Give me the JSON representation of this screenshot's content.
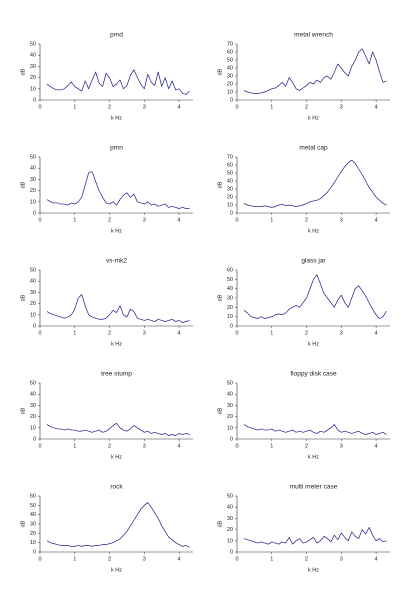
{
  "chart_data": [
    {
      "type": "line",
      "title": "pmd",
      "xlabel": "k Hz",
      "ylabel": "dB",
      "color": "#1c1c8a",
      "x": [
        0.2,
        0.3,
        0.4,
        0.5,
        0.6,
        0.7,
        0.8,
        0.9,
        1.0,
        1.1,
        1.2,
        1.3,
        1.4,
        1.5,
        1.6,
        1.7,
        1.8,
        1.9,
        2.0,
        2.1,
        2.2,
        2.3,
        2.4,
        2.5,
        2.6,
        2.7,
        2.8,
        2.9,
        3.0,
        3.1,
        3.2,
        3.3,
        3.4,
        3.5,
        3.6,
        3.7,
        3.8,
        3.9,
        4.0,
        4.1,
        4.2,
        4.3
      ],
      "values": [
        14,
        12,
        10,
        9,
        9,
        10,
        13,
        16,
        12,
        10,
        8,
        17,
        10,
        18,
        25,
        15,
        12,
        24,
        20,
        12,
        14,
        18,
        10,
        13,
        22,
        27,
        20,
        14,
        10,
        23,
        16,
        13,
        25,
        12,
        20,
        10,
        17,
        9,
        10,
        6,
        5,
        8
      ],
      "xlim": [
        0,
        4.4
      ],
      "xticks": [
        0,
        1,
        2,
        3,
        4
      ],
      "ylim": [
        0,
        50
      ],
      "yticks": [
        0,
        10,
        20,
        30,
        40,
        50
      ]
    },
    {
      "type": "line",
      "title": "metal wrench",
      "xlabel": "k Hz",
      "ylabel": "dB",
      "color": "#1c1c8a",
      "x": [
        0.2,
        0.3,
        0.4,
        0.5,
        0.6,
        0.7,
        0.8,
        0.9,
        1.0,
        1.1,
        1.2,
        1.3,
        1.4,
        1.5,
        1.6,
        1.7,
        1.8,
        1.9,
        2.0,
        2.1,
        2.2,
        2.3,
        2.4,
        2.5,
        2.6,
        2.7,
        2.8,
        2.9,
        3.0,
        3.1,
        3.2,
        3.3,
        3.4,
        3.5,
        3.6,
        3.7,
        3.8,
        3.9,
        4.0,
        4.1,
        4.2,
        4.3
      ],
      "values": [
        12,
        10,
        9,
        8,
        8,
        9,
        10,
        12,
        14,
        15,
        18,
        22,
        17,
        28,
        22,
        14,
        12,
        15,
        18,
        22,
        20,
        25,
        22,
        28,
        30,
        26,
        35,
        45,
        40,
        34,
        30,
        42,
        50,
        60,
        64,
        55,
        45,
        60,
        50,
        35,
        22,
        24
      ],
      "xlim": [
        0,
        4.4
      ],
      "xticks": [
        0,
        1,
        2,
        3,
        4
      ],
      "ylim": [
        0,
        70
      ],
      "yticks": [
        0,
        10,
        20,
        30,
        40,
        50,
        60,
        70
      ]
    },
    {
      "type": "line",
      "title": "pmn",
      "xlabel": "k Hz",
      "ylabel": "dB",
      "color": "#1c1c8a",
      "x": [
        0.2,
        0.3,
        0.4,
        0.5,
        0.6,
        0.7,
        0.8,
        0.9,
        1.0,
        1.1,
        1.2,
        1.3,
        1.4,
        1.5,
        1.6,
        1.7,
        1.8,
        1.9,
        2.0,
        2.1,
        2.2,
        2.3,
        2.4,
        2.5,
        2.6,
        2.7,
        2.8,
        2.9,
        3.0,
        3.1,
        3.2,
        3.3,
        3.4,
        3.5,
        3.6,
        3.7,
        3.8,
        3.9,
        4.0,
        4.1,
        4.2,
        4.3
      ],
      "values": [
        12,
        10,
        9,
        9,
        8,
        8,
        7,
        9,
        8,
        10,
        14,
        25,
        36,
        37,
        28,
        20,
        14,
        9,
        8,
        10,
        7,
        12,
        16,
        18,
        14,
        17,
        10,
        9,
        8,
        10,
        7,
        8,
        6,
        7,
        8,
        5,
        6,
        5,
        4,
        5,
        4,
        4
      ],
      "xlim": [
        0,
        4.4
      ],
      "xticks": [
        0,
        1,
        2,
        3,
        4
      ],
      "ylim": [
        0,
        50
      ],
      "yticks": [
        0,
        10,
        20,
        30,
        40,
        50
      ]
    },
    {
      "type": "line",
      "title": "metal cap",
      "xlabel": "k Hz",
      "ylabel": "dB",
      "color": "#1c1c8a",
      "x": [
        0.2,
        0.3,
        0.4,
        0.5,
        0.6,
        0.7,
        0.8,
        0.9,
        1.0,
        1.1,
        1.2,
        1.3,
        1.4,
        1.5,
        1.6,
        1.7,
        1.8,
        1.9,
        2.0,
        2.1,
        2.2,
        2.3,
        2.4,
        2.5,
        2.6,
        2.7,
        2.8,
        2.9,
        3.0,
        3.1,
        3.2,
        3.3,
        3.4,
        3.5,
        3.6,
        3.7,
        3.8,
        3.9,
        4.0,
        4.1,
        4.2,
        4.3
      ],
      "values": [
        12,
        10,
        9,
        8,
        8,
        8,
        9,
        8,
        7,
        8,
        10,
        11,
        9,
        10,
        9,
        8,
        9,
        10,
        12,
        14,
        15,
        16,
        18,
        22,
        26,
        32,
        38,
        45,
        52,
        58,
        63,
        66,
        62,
        55,
        48,
        40,
        32,
        26,
        20,
        16,
        12,
        10
      ],
      "xlim": [
        0,
        4.4
      ],
      "xticks": [
        0,
        1,
        2,
        3,
        4
      ],
      "ylim": [
        0,
        70
      ],
      "yticks": [
        0,
        10,
        20,
        30,
        40,
        50,
        60,
        70
      ]
    },
    {
      "type": "line",
      "title": "vs-mk2",
      "xlabel": "k Hz",
      "ylabel": "dB",
      "color": "#1c1c8a",
      "x": [
        0.2,
        0.3,
        0.4,
        0.5,
        0.6,
        0.7,
        0.8,
        0.9,
        1.0,
        1.1,
        1.2,
        1.3,
        1.4,
        1.5,
        1.6,
        1.7,
        1.8,
        1.9,
        2.0,
        2.1,
        2.2,
        2.3,
        2.4,
        2.5,
        2.6,
        2.7,
        2.8,
        2.9,
        3.0,
        3.1,
        3.2,
        3.3,
        3.4,
        3.5,
        3.6,
        3.7,
        3.8,
        3.9,
        4.0,
        4.1,
        4.2,
        4.3
      ],
      "values": [
        13,
        11,
        10,
        9,
        8,
        7,
        8,
        10,
        15,
        25,
        28,
        18,
        10,
        8,
        7,
        6,
        6,
        7,
        10,
        14,
        12,
        18,
        10,
        8,
        15,
        13,
        7,
        6,
        5,
        6,
        5,
        4,
        6,
        5,
        4,
        5,
        6,
        4,
        5,
        3,
        4,
        5
      ],
      "xlim": [
        0,
        4.4
      ],
      "xticks": [
        0,
        1,
        2,
        3,
        4
      ],
      "ylim": [
        0,
        50
      ],
      "yticks": [
        0,
        10,
        20,
        30,
        40,
        50
      ]
    },
    {
      "type": "line",
      "title": "glass jar",
      "xlabel": "k Hz",
      "ylabel": "dB",
      "color": "#1c1c8a",
      "x": [
        0.2,
        0.3,
        0.4,
        0.5,
        0.6,
        0.7,
        0.8,
        0.9,
        1.0,
        1.1,
        1.2,
        1.3,
        1.4,
        1.5,
        1.6,
        1.7,
        1.8,
        1.9,
        2.0,
        2.1,
        2.2,
        2.3,
        2.4,
        2.5,
        2.6,
        2.7,
        2.8,
        2.9,
        3.0,
        3.1,
        3.2,
        3.3,
        3.4,
        3.5,
        3.6,
        3.7,
        3.8,
        3.9,
        4.0,
        4.1,
        4.2,
        4.3
      ],
      "values": [
        17,
        14,
        10,
        9,
        8,
        10,
        8,
        9,
        10,
        12,
        13,
        12,
        14,
        18,
        20,
        22,
        20,
        25,
        30,
        40,
        50,
        55,
        45,
        35,
        30,
        25,
        20,
        28,
        33,
        25,
        20,
        30,
        40,
        43,
        38,
        32,
        25,
        18,
        12,
        8,
        10,
        16
      ],
      "xlim": [
        0,
        4.4
      ],
      "xticks": [
        0,
        1,
        2,
        3,
        4
      ],
      "ylim": [
        0,
        60
      ],
      "yticks": [
        0,
        10,
        20,
        30,
        40,
        50,
        60
      ]
    },
    {
      "type": "line",
      "title": "tree stump",
      "xlabel": "k Hz",
      "ylabel": "dB",
      "color": "#1c1c8a",
      "x": [
        0.2,
        0.3,
        0.4,
        0.5,
        0.6,
        0.7,
        0.8,
        0.9,
        1.0,
        1.1,
        1.2,
        1.3,
        1.4,
        1.5,
        1.6,
        1.7,
        1.8,
        1.9,
        2.0,
        2.1,
        2.2,
        2.3,
        2.4,
        2.5,
        2.6,
        2.7,
        2.8,
        2.9,
        3.0,
        3.1,
        3.2,
        3.3,
        3.4,
        3.5,
        3.6,
        3.7,
        3.8,
        3.9,
        4.0,
        4.1,
        4.2,
        4.3
      ],
      "values": [
        13,
        11,
        10,
        9,
        9,
        8,
        9,
        8,
        8,
        7,
        7,
        8,
        7,
        6,
        7,
        8,
        6,
        7,
        9,
        12,
        14,
        10,
        8,
        7,
        9,
        12,
        10,
        8,
        6,
        7,
        5,
        6,
        5,
        4,
        5,
        3,
        4,
        3,
        5,
        4,
        5,
        4
      ],
      "xlim": [
        0,
        4.4
      ],
      "xticks": [
        0,
        1,
        2,
        3,
        4
      ],
      "ylim": [
        0,
        50
      ],
      "yticks": [
        0,
        10,
        20,
        30,
        40,
        50
      ]
    },
    {
      "type": "line",
      "title": "floppy disk case",
      "xlabel": "k Hz",
      "ylabel": "dB",
      "color": "#1c1c8a",
      "x": [
        0.2,
        0.3,
        0.4,
        0.5,
        0.6,
        0.7,
        0.8,
        0.9,
        1.0,
        1.1,
        1.2,
        1.3,
        1.4,
        1.5,
        1.6,
        1.7,
        1.8,
        1.9,
        2.0,
        2.1,
        2.2,
        2.3,
        2.4,
        2.5,
        2.6,
        2.7,
        2.8,
        2.9,
        3.0,
        3.1,
        3.2,
        3.3,
        3.4,
        3.5,
        3.6,
        3.7,
        3.8,
        3.9,
        4.0,
        4.1,
        4.2,
        4.3
      ],
      "values": [
        13,
        11,
        10,
        9,
        8,
        9,
        8,
        8,
        9,
        7,
        8,
        7,
        6,
        7,
        8,
        6,
        7,
        6,
        7,
        8,
        6,
        5,
        7,
        6,
        8,
        10,
        13,
        8,
        6,
        7,
        6,
        5,
        6,
        7,
        5,
        4,
        5,
        6,
        4,
        5,
        6,
        4
      ],
      "xlim": [
        0,
        4.4
      ],
      "xticks": [
        0,
        1,
        2,
        3,
        4
      ],
      "ylim": [
        0,
        50
      ],
      "yticks": [
        0,
        10,
        20,
        30,
        40,
        50
      ]
    },
    {
      "type": "line",
      "title": "rock",
      "xlabel": "k Hz",
      "ylabel": "dB",
      "color": "#1c1c8a",
      "x": [
        0.2,
        0.3,
        0.4,
        0.5,
        0.6,
        0.7,
        0.8,
        0.9,
        1.0,
        1.1,
        1.2,
        1.3,
        1.4,
        1.5,
        1.6,
        1.7,
        1.8,
        1.9,
        2.0,
        2.1,
        2.2,
        2.3,
        2.4,
        2.5,
        2.6,
        2.7,
        2.8,
        2.9,
        3.0,
        3.1,
        3.2,
        3.3,
        3.4,
        3.5,
        3.6,
        3.7,
        3.8,
        3.9,
        4.0,
        4.1,
        4.2,
        4.3
      ],
      "values": [
        12,
        10,
        9,
        8,
        7,
        7,
        7,
        6,
        6,
        7,
        6,
        7,
        7,
        6,
        7,
        7,
        8,
        8,
        9,
        10,
        12,
        14,
        18,
        22,
        28,
        34,
        40,
        46,
        50,
        53,
        48,
        42,
        36,
        28,
        22,
        16,
        13,
        10,
        8,
        6,
        7,
        5
      ],
      "xlim": [
        0,
        4.4
      ],
      "xticks": [
        0,
        1,
        2,
        3,
        4
      ],
      "ylim": [
        0,
        60
      ],
      "yticks": [
        0,
        10,
        20,
        30,
        40,
        50,
        60
      ]
    },
    {
      "type": "line",
      "title": "multi meter case",
      "xlabel": "k Hz",
      "ylabel": "dB",
      "color": "#1c1c8a",
      "x": [
        0.2,
        0.3,
        0.4,
        0.5,
        0.6,
        0.7,
        0.8,
        0.9,
        1.0,
        1.1,
        1.2,
        1.3,
        1.4,
        1.5,
        1.6,
        1.7,
        1.8,
        1.9,
        2.0,
        2.1,
        2.2,
        2.3,
        2.4,
        2.5,
        2.6,
        2.7,
        2.8,
        2.9,
        3.0,
        3.1,
        3.2,
        3.3,
        3.4,
        3.5,
        3.6,
        3.7,
        3.8,
        3.9,
        4.0,
        4.1,
        4.2,
        4.3
      ],
      "values": [
        12,
        11,
        10,
        9,
        8,
        9,
        8,
        7,
        9,
        8,
        7,
        9,
        8,
        13,
        7,
        10,
        12,
        8,
        9,
        11,
        13,
        8,
        10,
        14,
        12,
        9,
        15,
        11,
        17,
        13,
        10,
        18,
        14,
        12,
        20,
        16,
        22,
        15,
        10,
        12,
        9,
        10
      ],
      "xlim": [
        0,
        4.4
      ],
      "xticks": [
        0,
        1,
        2,
        3,
        4
      ],
      "ylim": [
        0,
        50
      ],
      "yticks": [
        0,
        10,
        20,
        30,
        40,
        50
      ]
    }
  ]
}
